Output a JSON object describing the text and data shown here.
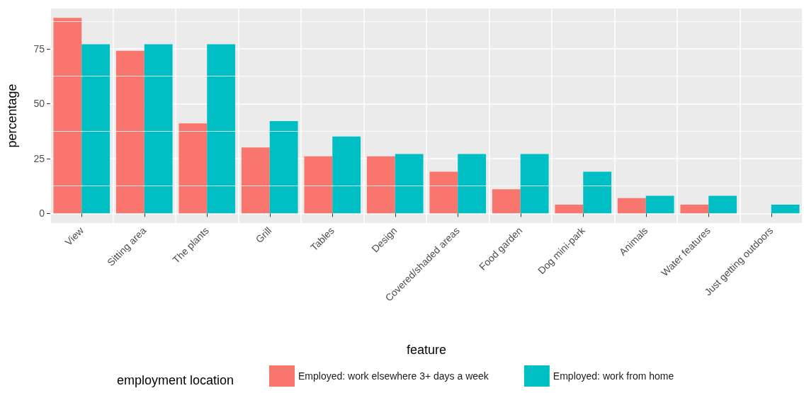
{
  "chart_data": {
    "type": "bar",
    "xlabel": "feature",
    "ylabel": "percentage",
    "legend_title": "employment location",
    "categories": [
      "View",
      "Sitting area",
      "The plants",
      "Grill",
      "Tables",
      "Design",
      "Covered/shaded areas",
      "Food garden",
      "Dog mini-park",
      "Animals",
      "Water features",
      "Just getting outdoors"
    ],
    "series": [
      {
        "name": "Employed: work elsewhere 3+ days a week",
        "color": "#f8766d",
        "values": [
          89,
          74,
          41,
          30,
          26,
          26,
          19,
          11,
          4,
          7,
          4,
          0
        ]
      },
      {
        "name": "Employed: work from home",
        "color": "#00bfc4",
        "values": [
          77,
          77,
          77,
          42,
          35,
          27,
          27,
          27,
          19,
          8,
          8,
          4
        ]
      }
    ],
    "ylim": [
      -4.4,
      93.3
    ],
    "yticks": [
      0,
      25,
      50,
      75
    ],
    "grid": true,
    "legend": "bottom"
  }
}
